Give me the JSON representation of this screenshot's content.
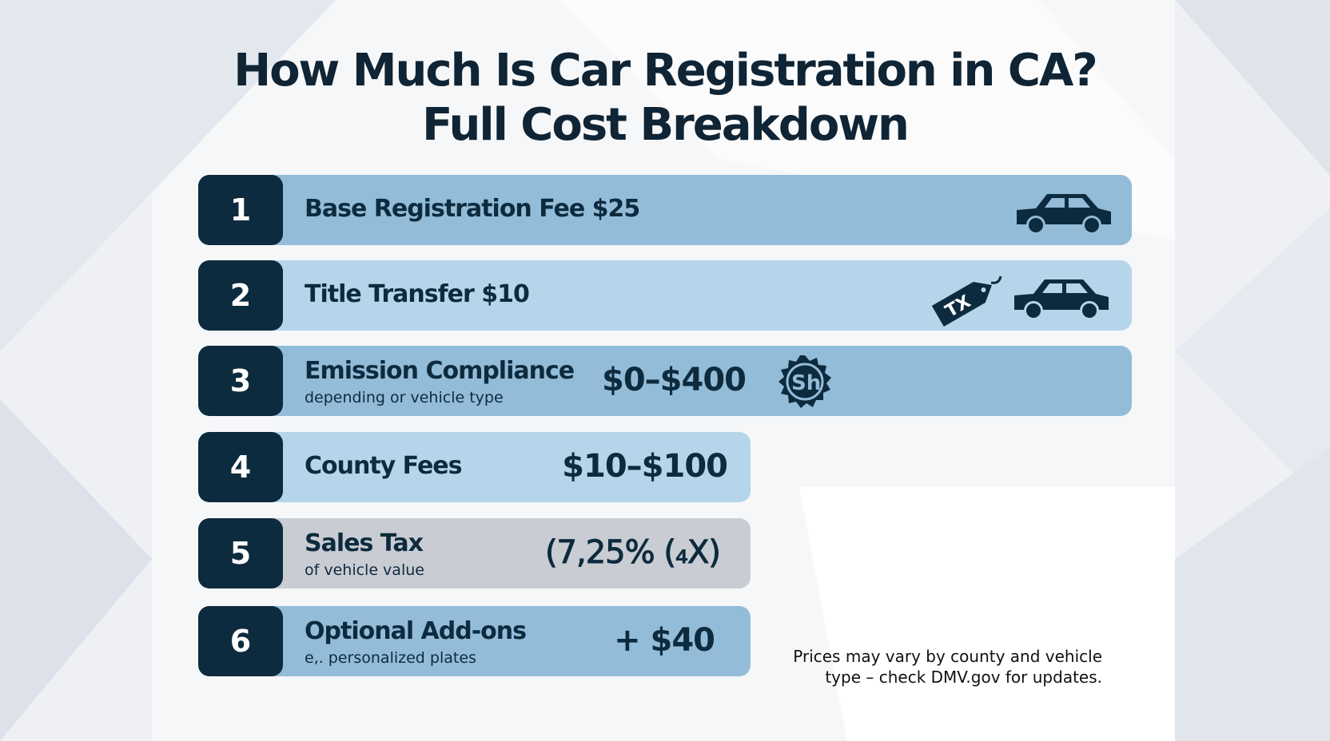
{
  "title": {
    "line1": "How Much Is Car Registration in CA?",
    "line2": "Full Cost Breakdown"
  },
  "colors": {
    "navy": "#0d2b3e",
    "blue": "#93bcd9",
    "light_blue": "#b5d5ea",
    "gray": "#c9ccd3"
  },
  "items": [
    {
      "number": "1",
      "label": "Base Registration Fee $25",
      "icon": "car-icon"
    },
    {
      "number": "2",
      "label": "Title Transfer $10",
      "icon": "tax-tag-car-icon",
      "tag_text": "TX"
    },
    {
      "number": "3",
      "label": "Emission Compliance",
      "sub": "depending or vehicle type",
      "value": "$0–$400",
      "icon": "smog-badge-icon",
      "badge_text": "Sh"
    },
    {
      "number": "4",
      "label": "County Fees",
      "value": "$10–$100"
    },
    {
      "number": "5",
      "label": "Sales Tax",
      "sub": "of vehicle value",
      "value": "(7,25%  (₄X)"
    },
    {
      "number": "6",
      "label": "Optional Add-ons",
      "sub": "e,. personalized plates",
      "value": "+ $40"
    }
  ],
  "footnote": {
    "line1": "Prices may vary by county and vehicle",
    "line2": "type – check DMV.gov for updates."
  }
}
